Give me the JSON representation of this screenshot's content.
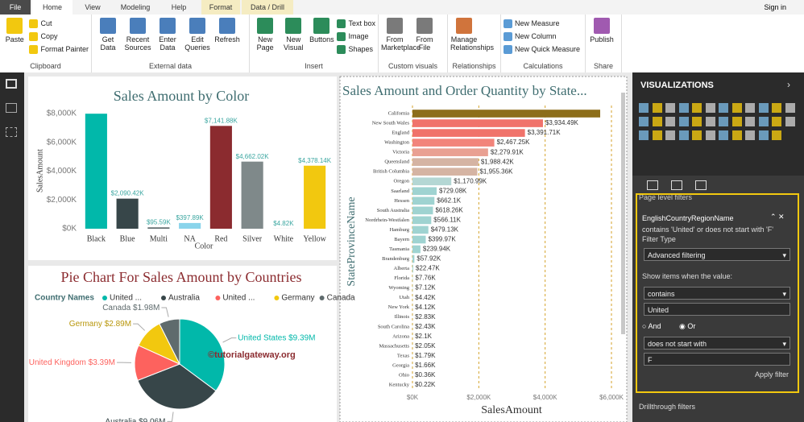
{
  "tabs": [
    "File",
    "Home",
    "View",
    "Modeling",
    "Help",
    "Format",
    "Data / Drill"
  ],
  "sign_in": "Sign in",
  "ribbon_groups": [
    {
      "name": "Clipboard",
      "items": [
        "Paste",
        "Cut",
        "Copy",
        "Format Painter"
      ]
    },
    {
      "name": "External data",
      "items": [
        "Get Data",
        "Recent Sources",
        "Enter Data",
        "Edit Queries",
        "Refresh"
      ]
    },
    {
      "name": "Insert",
      "items": [
        "New Page",
        "New Visual",
        "Buttons",
        "Text box",
        "Image",
        "Shapes"
      ]
    },
    {
      "name": "Custom visuals",
      "items": [
        "From Marketplace",
        "From File"
      ]
    },
    {
      "name": "Relationships",
      "items": [
        "Manage Relationships"
      ]
    },
    {
      "name": "Calculations",
      "items": [
        "New Measure",
        "New Column",
        "New Quick Measure"
      ]
    },
    {
      "name": "Share",
      "items": [
        "Publish"
      ]
    }
  ],
  "chart_data": [
    {
      "type": "bar",
      "title": "Sales Amount by Color",
      "x_label": "Color",
      "y_label": "SalesAmount",
      "categories": [
        "Black",
        "Blue",
        "Multi",
        "NA",
        "Red",
        "Silver",
        "White",
        "Yellow"
      ],
      "values": [
        7990,
        2090.42,
        95.59,
        397.89,
        7141.88,
        4662.02,
        4.82,
        4378.14
      ],
      "value_labels": [
        null,
        "$2,090.42K",
        "$95.59K",
        "$397.89K",
        "$7,141.88K",
        "$4,662.02K",
        "$4.82K",
        "$4,378.14K"
      ],
      "colors": [
        "#01b8aa",
        "#374649",
        "#5f6b6d",
        "#8ad4eb",
        "#8b2b2f",
        "#7f898a",
        "#a0a7a8",
        "#f2c80f"
      ],
      "ylim": [
        0,
        8000
      ],
      "yticks": [
        {
          "value": 0,
          "label": "$0K"
        },
        {
          "value": 2000,
          "label": "$2,000K"
        },
        {
          "value": 4000,
          "label": "$4,000K"
        },
        {
          "value": 6000,
          "label": "$6,000K"
        },
        {
          "value": 8000,
          "label": "$8,000K"
        }
      ],
      "grid": false
    },
    {
      "type": "pie",
      "title": "Pie Chart For Sales Amount by Countries",
      "legend_title": "Country Names",
      "categories": [
        "United States",
        "Australia",
        "United Kingdom",
        "Germany",
        "Canada"
      ],
      "legend_labels": [
        "United ...",
        "Australia",
        "United ...",
        "Germany",
        "Canada"
      ],
      "values": [
        9.39,
        9.06,
        3.39,
        2.89,
        1.98
      ],
      "value_labels": [
        "$9.39M",
        "$9.06M",
        "$3.39M",
        "$2.89M",
        "$1.98M"
      ],
      "colors": [
        "#01b8aa",
        "#374649",
        "#fd625e",
        "#f2c80f",
        "#5f6b6d"
      ],
      "annotation": "©tutorialgateway.org"
    },
    {
      "type": "bar",
      "horizontal": true,
      "title": "Sales Amount and Order Quantity by State...",
      "x_label": "SalesAmount",
      "y_label": "StateProvinceName",
      "categories": [
        "California",
        "New South Wales",
        "England",
        "Washington",
        "Victoria",
        "Queensland",
        "British Columbia",
        "Oregon",
        "Saarland",
        "Hessen",
        "South Australia",
        "Nordrhein-Westfalen",
        "Hamburg",
        "Bayern",
        "Tasmania",
        "Brandenburg",
        "Alberta",
        "Florida",
        "Wyoming",
        "Utah",
        "New York",
        "Illinois",
        "South Carolina",
        "Arizona",
        "Massachusetts",
        "Texas",
        "Georgia",
        "Ohio",
        "Kentucky"
      ],
      "values": [
        5660,
        3934.49,
        3391.71,
        2467.25,
        2279.91,
        1988.42,
        1955.36,
        1170.99,
        729.08,
        662.1,
        618.26,
        566.11,
        479.13,
        399.97,
        239.94,
        57.92,
        22.47,
        7.76,
        7.12,
        4.42,
        4.12,
        2.83,
        2.43,
        2.1,
        2.05,
        1.79,
        1.66,
        0.36,
        0.22
      ],
      "value_labels": [
        null,
        "$3,934.49K",
        "$3,391.71K",
        "$2,467.25K",
        "$2,279.91K",
        "$1,988.42K",
        "$1,955.36K",
        "$1,170.99K",
        "$729.08K",
        "$662.1K",
        "$618.26K",
        "$566.11K",
        "$479.13K",
        "$399.97K",
        "$239.94K",
        "$57.92K",
        "$22.47K",
        "$7.76K",
        "$7.12K",
        "$4.42K",
        "$4.12K",
        "$2.83K",
        "$2.43K",
        "$2.1K",
        "$2.05K",
        "$1.79K",
        "$1.66K",
        "$0.36K",
        "$0.22K"
      ],
      "colors": [
        "#8d6e1a",
        "#f0736b",
        "#f0736b",
        "#f2847b",
        "#e9a092",
        "#d5b4a3",
        "#d5b4a3",
        "#b4d7d4",
        "#9fd3d1",
        "#9fd3d1",
        "#9fd3d1",
        "#9fd3d1",
        "#9fd3d1",
        "#9fd3d1",
        "#9fd3d1",
        "#9fd3d1",
        "#9fd3d1",
        "#9fd3d1",
        "#9fd3d1",
        "#9fd3d1",
        "#9fd3d1",
        "#9fd3d1",
        "#9fd3d1",
        "#9fd3d1",
        "#9fd3d1",
        "#9fd3d1",
        "#9fd3d1",
        "#9fd3d1",
        "#9fd3d1"
      ],
      "xlim": [
        0,
        6000
      ],
      "xticks": [
        {
          "value": 0,
          "label": "$0K"
        },
        {
          "value": 2000,
          "label": "$2,000K"
        },
        {
          "value": 4000,
          "label": "$4,000K"
        },
        {
          "value": 6000,
          "label": "$6,000K"
        }
      ],
      "grid": true
    }
  ],
  "visualizations": {
    "title": "VISUALIZATIONS",
    "page_level_filters": "Page level filters",
    "filter": {
      "field": "EnglishCountryRegionName",
      "summary": "contains 'United' or does not start with 'F'",
      "filter_type_label": "Filter Type",
      "filter_type": "Advanced filtering",
      "show_items": "Show items when the value:",
      "condition1": "contains",
      "value1": "United",
      "and": "And",
      "or": "Or",
      "condition2": "does not start with",
      "value2": "F",
      "apply": "Apply filter"
    },
    "drillthrough": "Drillthrough filters"
  }
}
